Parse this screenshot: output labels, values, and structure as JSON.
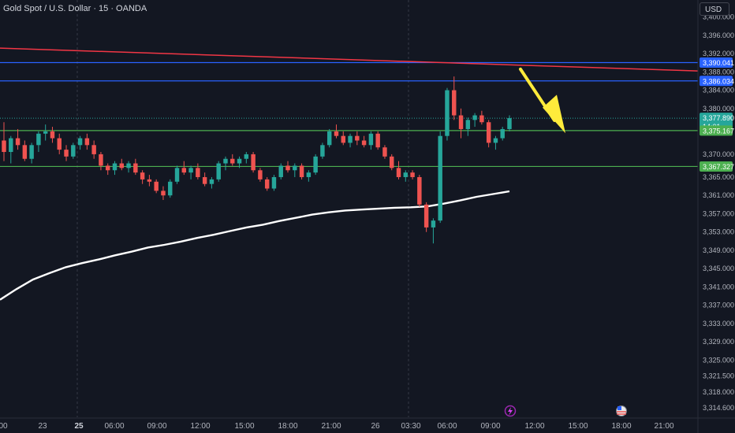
{
  "header": {
    "title": "Gold Spot / U.S. Dollar · 15 · OANDA",
    "currency": "USD"
  },
  "colors": {
    "background": "#131722",
    "up_candle": "#26a69a",
    "down_candle": "#ef5350",
    "ema_line": "#ffffff",
    "red_trendline": "#f23645",
    "blue_level": "#2962ff",
    "green_level": "#4caf50",
    "arrow": "#ffeb3b"
  },
  "chart_data": {
    "type": "candlestick",
    "symbol": "Gold Spot / U.S. Dollar",
    "interval": "15",
    "exchange": "OANDA",
    "y_range": [
      3312.5,
      3402.0
    ],
    "y_ticks": [
      "3,400.000",
      "3,396.000",
      "3,392.000",
      "3,388.000",
      "3,384.000",
      "3,380.000",
      "3,370.000",
      "3,365.000",
      "3,361.000",
      "3,357.000",
      "3,353.000",
      "3,349.000",
      "3,345.000",
      "3,341.000",
      "3,337.000",
      "3,333.000",
      "3,329.000",
      "3,325.000",
      "3,321.500",
      "3,318.000",
      "3,314.600"
    ],
    "x_ticks": [
      {
        "label": "00",
        "bold": false
      },
      {
        "label": "23",
        "bold": false
      },
      {
        "label": "25",
        "bold": true
      },
      {
        "label": "06:00",
        "bold": false
      },
      {
        "label": "09:00",
        "bold": false
      },
      {
        "label": "12:00",
        "bold": false
      },
      {
        "label": "15:00",
        "bold": false
      },
      {
        "label": "18:00",
        "bold": false
      },
      {
        "label": "21:00",
        "bold": false
      },
      {
        "label": "26",
        "bold": false
      },
      {
        "label": "03:30",
        "bold": false
      },
      {
        "label": "06:00",
        "bold": false
      },
      {
        "label": "09:00",
        "bold": false
      },
      {
        "label": "12:00",
        "bold": false
      },
      {
        "label": "15:00",
        "bold": false
      },
      {
        "label": "18:00",
        "bold": false
      },
      {
        "label": "21:00",
        "bold": false
      }
    ],
    "price_tags": [
      {
        "label": "3,390.041",
        "value": 3390.041,
        "kind": "blue"
      },
      {
        "label": "3,386.034",
        "value": 3386.034,
        "kind": "blue"
      },
      {
        "label": "3,377.890",
        "sub": "14:01",
        "value": 3377.89,
        "kind": "current"
      },
      {
        "label": "3,375.167",
        "value": 3375.167,
        "kind": "green"
      },
      {
        "label": "3,367.327",
        "value": 3367.327,
        "kind": "green"
      }
    ],
    "horizontal_levels": [
      {
        "value": 3390.041,
        "color": "blue"
      },
      {
        "value": 3386.034,
        "color": "blue"
      },
      {
        "value": 3375.167,
        "color": "green"
      },
      {
        "value": 3367.327,
        "color": "green"
      }
    ],
    "current_price": 3377.89,
    "trendline": {
      "start": 3393.2,
      "end": 3388.2
    },
    "moving_average": [
      3338.2,
      3340.5,
      3342.6,
      3344.0,
      3345.3,
      3346.2,
      3347.0,
      3347.9,
      3348.7,
      3349.6,
      3350.2,
      3350.9,
      3351.7,
      3352.4,
      3353.2,
      3354.0,
      3354.6,
      3355.4,
      3356.1,
      3356.8,
      3357.3,
      3357.7,
      3357.9,
      3358.1,
      3358.3,
      3358.4,
      3358.6,
      3359.2,
      3359.9,
      3360.7,
      3361.3,
      3361.9
    ],
    "candles": [
      [
        3373.0,
        3377.0,
        3368.5,
        3370.5
      ],
      [
        3370.5,
        3374.0,
        3368.0,
        3373.5
      ],
      [
        3373.5,
        3375.5,
        3371.0,
        3372.0
      ],
      [
        3372.0,
        3373.0,
        3368.5,
        3369.0
      ],
      [
        3369.0,
        3372.5,
        3368.0,
        3372.0
      ],
      [
        3372.0,
        3375.0,
        3370.5,
        3374.5
      ],
      [
        3374.5,
        3376.5,
        3373.0,
        3375.0
      ],
      [
        3375.0,
        3376.0,
        3372.5,
        3373.5
      ],
      [
        3373.5,
        3374.5,
        3370.0,
        3371.0
      ],
      [
        3371.0,
        3372.0,
        3368.5,
        3369.5
      ],
      [
        3369.5,
        3372.5,
        3369.0,
        3372.0
      ],
      [
        3372.0,
        3374.0,
        3371.0,
        3373.5
      ],
      [
        3373.5,
        3374.5,
        3371.0,
        3372.0
      ],
      [
        3372.0,
        3373.0,
        3369.0,
        3370.0
      ],
      [
        3370.0,
        3370.5,
        3366.5,
        3367.5
      ],
      [
        3367.5,
        3368.0,
        3365.5,
        3366.5
      ],
      [
        3366.5,
        3368.5,
        3365.5,
        3368.0
      ],
      [
        3368.0,
        3369.0,
        3366.5,
        3367.0
      ],
      [
        3367.0,
        3368.5,
        3366.0,
        3368.0
      ],
      [
        3368.0,
        3369.0,
        3365.5,
        3366.0
      ],
      [
        3366.0,
        3366.5,
        3363.5,
        3364.5
      ],
      [
        3364.5,
        3365.5,
        3363.0,
        3364.0
      ],
      [
        3364.0,
        3364.5,
        3361.5,
        3362.0
      ],
      [
        3362.0,
        3363.0,
        3360.0,
        3361.0
      ],
      [
        3361.0,
        3364.5,
        3360.5,
        3364.0
      ],
      [
        3364.0,
        3367.5,
        3363.5,
        3367.0
      ],
      [
        3367.0,
        3368.5,
        3365.5,
        3366.0
      ],
      [
        3366.0,
        3367.5,
        3364.5,
        3367.0
      ],
      [
        3367.0,
        3368.0,
        3364.5,
        3365.0
      ],
      [
        3365.0,
        3366.0,
        3363.0,
        3363.5
      ],
      [
        3363.5,
        3365.0,
        3362.5,
        3364.5
      ],
      [
        3364.5,
        3368.5,
        3364.0,
        3368.0
      ],
      [
        3368.0,
        3369.5,
        3366.5,
        3369.0
      ],
      [
        3369.0,
        3370.0,
        3367.5,
        3368.0
      ],
      [
        3368.0,
        3369.5,
        3367.0,
        3369.0
      ],
      [
        3369.0,
        3370.5,
        3368.0,
        3370.0
      ],
      [
        3370.0,
        3370.5,
        3366.0,
        3366.5
      ],
      [
        3366.5,
        3367.0,
        3364.0,
        3364.5
      ],
      [
        3364.5,
        3365.0,
        3362.0,
        3362.5
      ],
      [
        3362.5,
        3365.5,
        3362.0,
        3365.0
      ],
      [
        3365.0,
        3368.0,
        3364.5,
        3367.5
      ],
      [
        3367.5,
        3368.5,
        3366.0,
        3366.5
      ],
      [
        3366.5,
        3368.0,
        3365.0,
        3367.5
      ],
      [
        3367.5,
        3368.0,
        3364.5,
        3365.0
      ],
      [
        3365.0,
        3366.5,
        3364.0,
        3366.0
      ],
      [
        3366.0,
        3370.0,
        3365.5,
        3369.5
      ],
      [
        3369.5,
        3372.5,
        3369.0,
        3372.0
      ],
      [
        3372.0,
        3375.5,
        3371.5,
        3375.0
      ],
      [
        3375.0,
        3376.5,
        3373.5,
        3374.0
      ],
      [
        3374.0,
        3375.0,
        3372.0,
        3372.5
      ],
      [
        3372.5,
        3374.5,
        3371.5,
        3374.0
      ],
      [
        3374.0,
        3375.0,
        3372.0,
        3373.0
      ],
      [
        3373.0,
        3374.0,
        3371.5,
        3372.0
      ],
      [
        3372.0,
        3375.0,
        3371.0,
        3374.5
      ],
      [
        3374.5,
        3375.0,
        3371.0,
        3371.5
      ],
      [
        3371.5,
        3372.0,
        3369.0,
        3369.5
      ],
      [
        3369.5,
        3370.0,
        3366.5,
        3367.0
      ],
      [
        3367.0,
        3368.5,
        3364.5,
        3365.0
      ],
      [
        3365.0,
        3366.5,
        3364.0,
        3366.0
      ],
      [
        3366.0,
        3366.5,
        3364.5,
        3365.0
      ],
      [
        3365.0,
        3365.5,
        3358.5,
        3359.0
      ],
      [
        3359.0,
        3359.5,
        3353.0,
        3354.0
      ],
      [
        3354.0,
        3356.0,
        3350.5,
        3355.5
      ],
      [
        3355.5,
        3375.0,
        3355.0,
        3374.0
      ],
      [
        3374.0,
        3384.5,
        3373.0,
        3384.0
      ],
      [
        3384.0,
        3387.0,
        3377.5,
        3378.5
      ],
      [
        3378.5,
        3380.0,
        3373.5,
        3375.5
      ],
      [
        3375.5,
        3378.0,
        3374.0,
        3377.5
      ],
      [
        3377.5,
        3379.0,
        3376.0,
        3378.5
      ],
      [
        3378.5,
        3379.5,
        3376.5,
        3377.0
      ],
      [
        3377.0,
        3377.5,
        3371.5,
        3372.5
      ],
      [
        3372.5,
        3374.0,
        3371.0,
        3373.5
      ],
      [
        3373.5,
        3376.0,
        3373.0,
        3375.5
      ],
      [
        3375.5,
        3378.5,
        3375.0,
        3377.89
      ]
    ]
  }
}
